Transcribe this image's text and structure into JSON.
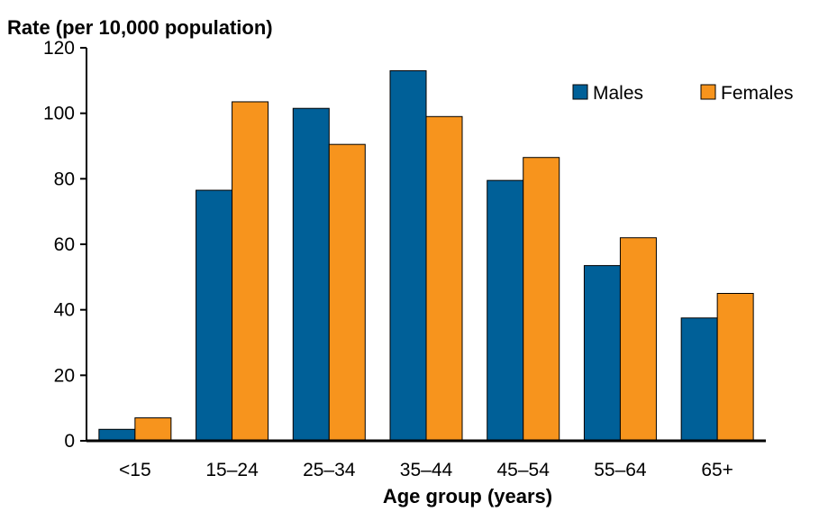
{
  "chart_data": {
    "type": "bar",
    "ylabel": "Rate (per 10,000 population)",
    "xlabel": "Age group (years)",
    "categories": [
      "<15",
      "15–24",
      "25–34",
      "35–44",
      "45–54",
      "55–64",
      "65+"
    ],
    "series": [
      {
        "name": "Males",
        "color": "#006098",
        "values": [
          3.5,
          76.5,
          101.5,
          113,
          79.5,
          53.5,
          37.5
        ]
      },
      {
        "name": "Females",
        "color": "#F7941D",
        "values": [
          7,
          103.5,
          90.5,
          99,
          86.5,
          62,
          45
        ]
      }
    ],
    "ylim": [
      0,
      120
    ],
    "yticks": [
      0,
      20,
      40,
      60,
      80,
      100,
      120
    ],
    "grid": false,
    "legend_position": "top-right"
  }
}
